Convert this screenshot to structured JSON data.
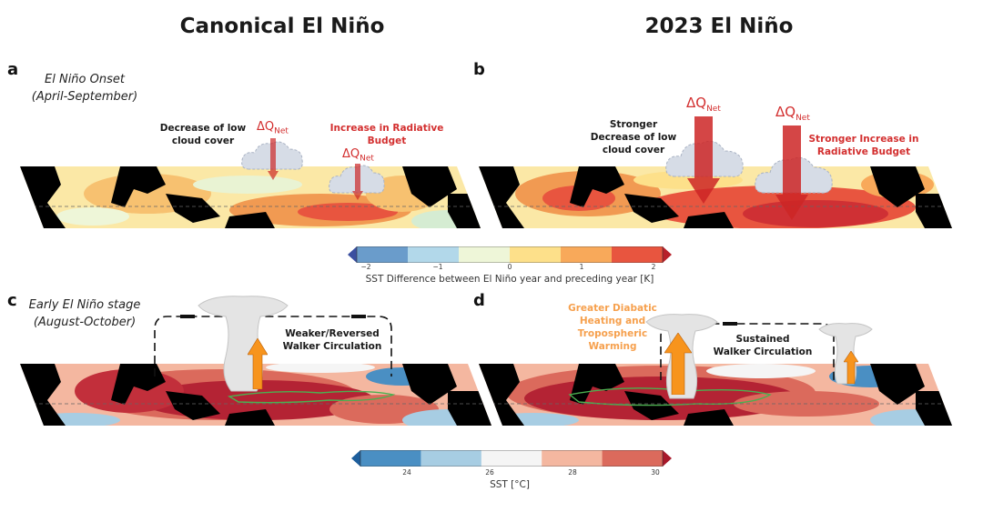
{
  "columns": {
    "left_title": "Canonical El Niño",
    "right_title": "2023 El Niño"
  },
  "panels": {
    "a": {
      "label": "a",
      "phase_line1": "El Niño Onset",
      "phase_line2": "(April-September)"
    },
    "b": {
      "label": "b"
    },
    "c": {
      "label": "c",
      "phase_line1": "Early El Niño stage",
      "phase_line2": "(August-October)"
    },
    "d": {
      "label": "d"
    }
  },
  "annotations": {
    "a_cloud_line1": "Decrease of low",
    "a_cloud_line2": "cloud cover",
    "a_rad_line1": "Increase in Radiative",
    "a_rad_line2": "Budget",
    "b_cloud_line1": "Stronger",
    "b_cloud_line2": "Decrease of low",
    "b_cloud_line3": "cloud cover",
    "b_rad_line1": "Stronger Increase in",
    "b_rad_line2": "Radiative Budget",
    "dq_main": "ΔQ",
    "dq_sub": "Net",
    "c_walker_line1": "Weaker/Reversed",
    "c_walker_line2": "Walker Circulation",
    "d_walker_line1": "Sustained",
    "d_walker_line2": "Walker Circulation",
    "d_heat_line1": "Greater Diabatic",
    "d_heat_line2": "Heating and",
    "d_heat_line3": "Tropospheric",
    "d_heat_line4": "Warming"
  },
  "colorbar_diff": {
    "title": "SST Difference between El Niño year and preceding year [K]",
    "ticks": [
      "−2",
      "−1",
      "0",
      "1",
      "2"
    ],
    "colors": [
      "#3a4fa0",
      "#6a9ccb",
      "#b2d8ea",
      "#eef6d8",
      "#fde08a",
      "#f8a95a",
      "#e8553f",
      "#b7202a"
    ]
  },
  "colorbar_sst": {
    "title": "SST [°C]",
    "ticks": [
      "24",
      "26",
      "28",
      "30"
    ],
    "colors": [
      "#1d5e9c",
      "#4a8fc3",
      "#a7cde3",
      "#f5f5f5",
      "#f4b7a0",
      "#db6a5c",
      "#a8182a"
    ]
  },
  "colors": {
    "land": "#000000",
    "red_text": "#d32f2f",
    "orange_text": "#f6a04d",
    "orange_arrow": "#f7941d",
    "red_arrow": "#cc2626",
    "cloud": "#d6dce6",
    "convective_cloud": "#e4e4e4",
    "contour": "#4caf50"
  },
  "icons": {
    "dq_arrow": "down-arrow-icon",
    "uplift_arrow": "up-arrow-icon",
    "cloud": "cloud-icon",
    "walker_loop": "circulation-loop-icon"
  }
}
